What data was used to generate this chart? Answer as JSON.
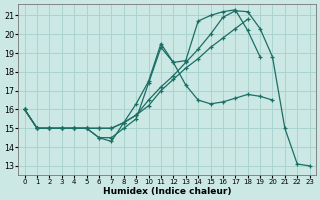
{
  "xlabel": "Humidex (Indice chaleur)",
  "bg_color": "#cce8e4",
  "grid_color": "#aad4d0",
  "line_color": "#1a6e64",
  "xlim": [
    -0.5,
    23.5
  ],
  "ylim": [
    12.5,
    21.6
  ],
  "xticks": [
    0,
    1,
    2,
    3,
    4,
    5,
    6,
    7,
    8,
    9,
    10,
    11,
    12,
    13,
    14,
    15,
    16,
    17,
    18,
    19,
    20,
    21,
    22,
    23
  ],
  "yticks": [
    13,
    14,
    15,
    16,
    17,
    18,
    19,
    20,
    21
  ],
  "series": [
    [
      16,
      15,
      15,
      15,
      15,
      15,
      14.5,
      14.5,
      15.0,
      15.5,
      17.4,
      19.3,
      18.5,
      17.3,
      16.5,
      16.3,
      16.4,
      16.6,
      16.8,
      16.7,
      16.5,
      null,
      null,
      null
    ],
    [
      16,
      15,
      15,
      15,
      15,
      15,
      15.0,
      15.0,
      15.3,
      15.7,
      16.2,
      17.0,
      17.6,
      18.2,
      18.7,
      19.3,
      19.8,
      20.3,
      20.8,
      null,
      null,
      null,
      null,
      null
    ],
    [
      16,
      15,
      15,
      15,
      15,
      15,
      15.0,
      15.0,
      15.3,
      15.7,
      16.5,
      17.2,
      17.8,
      18.5,
      19.2,
      20.0,
      20.9,
      21.25,
      21.2,
      20.3,
      18.8,
      15.0,
      13.1,
      13.0
    ],
    [
      16,
      15,
      15,
      15,
      15,
      15,
      14.5,
      14.3,
      15.3,
      16.3,
      17.5,
      19.5,
      18.5,
      18.6,
      20.7,
      21.0,
      21.2,
      21.3,
      20.2,
      18.8,
      null,
      null,
      null,
      null
    ]
  ]
}
